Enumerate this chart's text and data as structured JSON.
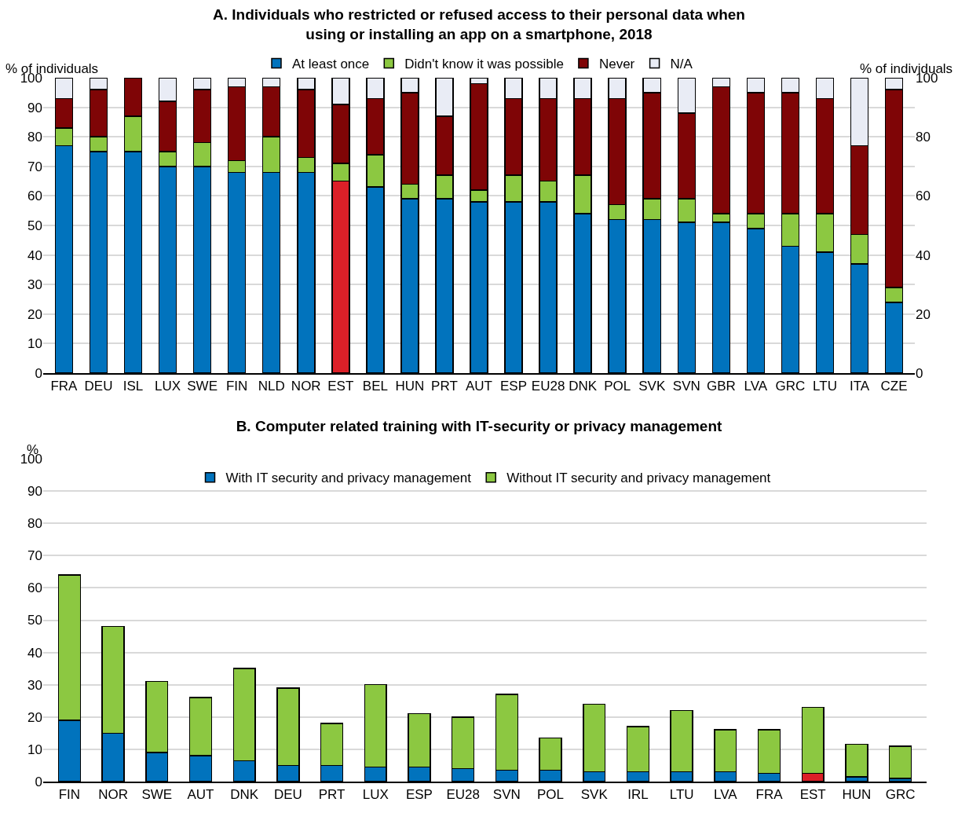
{
  "chart_data": [
    {
      "type": "bar",
      "title": "A. Individuals who restricted or refused access to their personal data when using or installing an app on a smartphone, 2018",
      "ylabel": "% of individuals",
      "y2label": "% of individuals",
      "categories": [
        "FRA",
        "DEU",
        "ISL",
        "LUX",
        "SWE",
        "FIN",
        "NLD",
        "NOR",
        "EST",
        "BEL",
        "HUN",
        "PRT",
        "AUT",
        "ESP",
        "EU28",
        "DNK",
        "POL",
        "SVK",
        "SVN",
        "GBR",
        "LVA",
        "GRC",
        "LTU",
        "ITA",
        "CZE"
      ],
      "stacked": true,
      "ylim": [
        0,
        100
      ],
      "yticks": [
        0,
        10,
        20,
        30,
        40,
        50,
        60,
        70,
        80,
        90,
        100
      ],
      "y2lim": [
        0,
        100
      ],
      "y2ticks": [
        0,
        20,
        40,
        60,
        80,
        100
      ],
      "grid": "y",
      "legend": "top",
      "series": [
        {
          "name": "At least once",
          "color": "#0173bd",
          "colors": [
            null,
            null,
            null,
            null,
            null,
            null,
            null,
            null,
            "#dc2028",
            null,
            null,
            null,
            null,
            null,
            null,
            null,
            null,
            null,
            null,
            null,
            null,
            null,
            null,
            null,
            null
          ],
          "values": [
            77,
            75,
            75,
            70,
            70,
            68,
            68,
            68,
            65,
            63,
            59,
            59,
            58,
            58,
            58,
            54,
            52,
            52,
            51,
            51,
            49,
            43,
            41,
            37,
            24
          ]
        },
        {
          "name": "Didn't know it was possible",
          "color": "#8cc841",
          "values": [
            6,
            5,
            12,
            5,
            8,
            4,
            12,
            5,
            6,
            11,
            5,
            8,
            4,
            9,
            7,
            13,
            5,
            7,
            8,
            3,
            5,
            11,
            13,
            10,
            5
          ]
        },
        {
          "name": "Never",
          "color": "#7f0506",
          "values": [
            10,
            16,
            13,
            17,
            18,
            25,
            17,
            23,
            20,
            19,
            31,
            20,
            36,
            26,
            28,
            26,
            36,
            36,
            29,
            43,
            41,
            41,
            39,
            30,
            67
          ]
        },
        {
          "name": "N/A",
          "color": "#e9ecf5",
          "values": [
            7,
            4,
            0,
            8,
            4,
            3,
            3,
            4,
            9,
            7,
            5,
            13,
            2,
            7,
            7,
            7,
            7,
            5,
            12,
            3,
            5,
            5,
            7,
            23,
            4
          ]
        }
      ]
    },
    {
      "type": "bar",
      "title": "B. Computer related training with IT-security or privacy management",
      "ylabel": "%",
      "categories": [
        "FIN",
        "NOR",
        "SWE",
        "AUT",
        "DNK",
        "DEU",
        "PRT",
        "LUX",
        "ESP",
        "EU28",
        "SVN",
        "POL",
        "SVK",
        "IRL",
        "LTU",
        "LVA",
        "FRA",
        "EST",
        "HUN",
        "GRC"
      ],
      "stacked": true,
      "ylim": [
        0,
        100
      ],
      "yticks": [
        0,
        10,
        20,
        30,
        40,
        50,
        60,
        70,
        80,
        90,
        100
      ],
      "grid": "y",
      "legend": "top",
      "series": [
        {
          "name": "With IT security and privacy management",
          "color": "#0173bd",
          "colors": [
            null,
            null,
            null,
            null,
            null,
            null,
            null,
            null,
            null,
            null,
            null,
            null,
            null,
            null,
            null,
            null,
            null,
            "#dc2028",
            null,
            null
          ],
          "values": [
            19,
            15,
            9,
            8,
            6.5,
            5,
            5,
            4.5,
            4.5,
            4,
            3.5,
            3.5,
            3,
            3,
            3,
            3,
            2.5,
            2.5,
            1.5,
            1
          ]
        },
        {
          "name": "Without IT security and privacy management",
          "color": "#8cc841",
          "values": [
            45,
            33,
            22,
            18,
            28.5,
            24,
            13,
            25.5,
            16.5,
            16,
            23.5,
            10,
            21,
            14,
            19,
            13,
            13.5,
            20.5,
            10,
            10
          ]
        }
      ]
    }
  ]
}
